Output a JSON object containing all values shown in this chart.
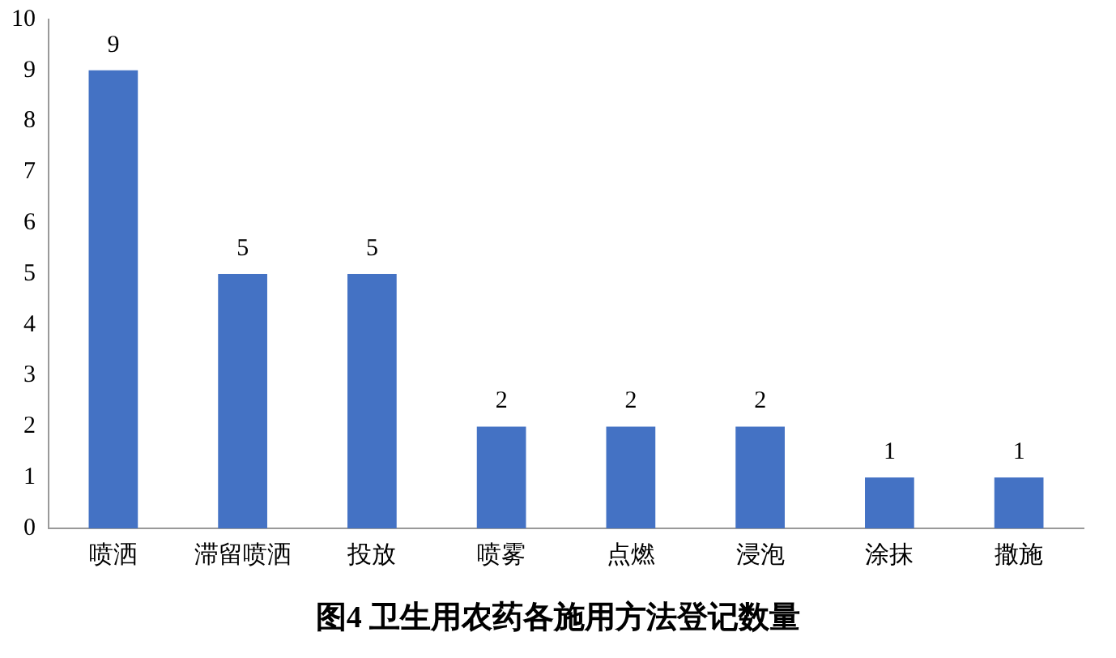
{
  "chart_data": {
    "type": "bar",
    "title": "图4 卫生用农药各施用方法登记数量",
    "categories": [
      "喷洒",
      "滞留喷洒",
      "投放",
      "喷雾",
      "点燃",
      "浸泡",
      "涂抹",
      "撒施"
    ],
    "values": [
      9,
      5,
      5,
      2,
      2,
      2,
      1,
      1
    ],
    "color": "#4472c4",
    "ylim": [
      0,
      10
    ],
    "yticks": [
      0,
      1,
      2,
      3,
      4,
      5,
      6,
      7,
      8,
      9,
      10
    ],
    "grid": false,
    "data_labels": true
  }
}
